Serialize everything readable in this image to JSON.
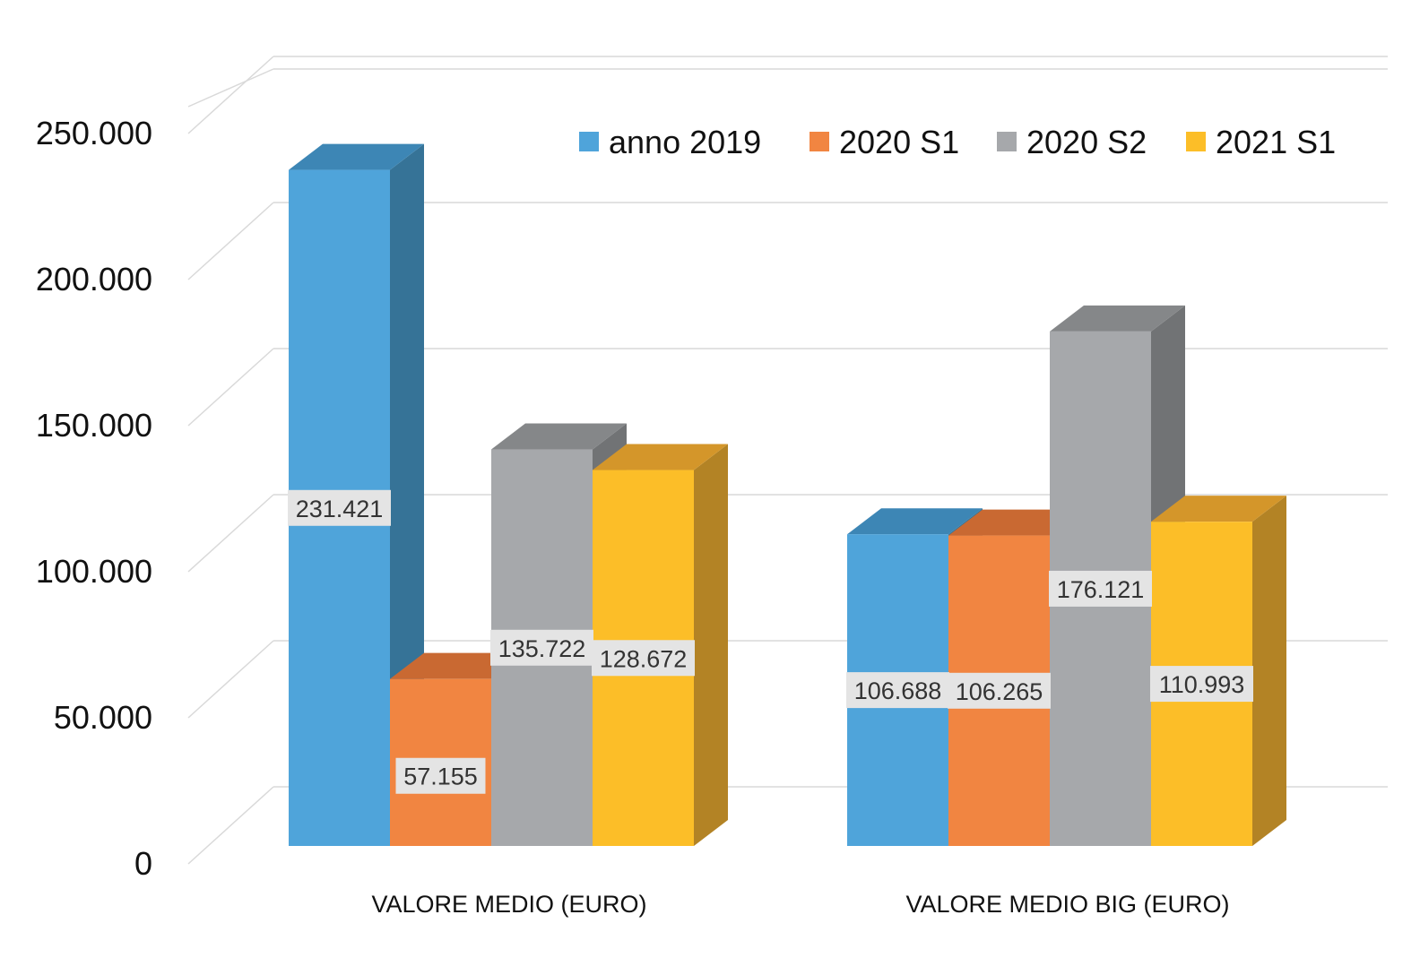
{
  "chart_data": {
    "type": "bar",
    "categories": [
      "VALORE MEDIO (EURO)",
      "VALORE MEDIO BIG (EURO)"
    ],
    "series": [
      {
        "name": "anno 2019",
        "values": [
          231421,
          106688
        ],
        "labels": [
          "231.421",
          "106.688"
        ],
        "color": "#4FA4DA",
        "side": "#367397",
        "top": "#3D86B5"
      },
      {
        "name": "2020 S1",
        "values": [
          57155,
          106265
        ],
        "labels": [
          "57.155",
          "106.265"
        ],
        "color": "#F18541",
        "side": "#B8632E",
        "top": "#C96932"
      },
      {
        "name": "2020 S2",
        "values": [
          135722,
          176121
        ],
        "labels": [
          "135.722",
          "176.121"
        ],
        "color": "#A6A8AB",
        "side": "#717375",
        "top": "#858789"
      },
      {
        "name": "2021 S1",
        "values": [
          128672,
          110993
        ],
        "labels": [
          "128.672",
          "110.993"
        ],
        "color": "#FCBE28",
        "side": "#B38325",
        "top": "#D4962A"
      }
    ],
    "ylim": [
      0,
      250000
    ],
    "yticks": [
      0,
      50000,
      100000,
      150000,
      200000,
      250000
    ],
    "ytick_labels": [
      "0",
      "50.000",
      "100.000",
      "150.000",
      "200.000",
      "250.000"
    ],
    "grid": true,
    "legend_position": "top-right",
    "style": "3d-clustered-column"
  }
}
